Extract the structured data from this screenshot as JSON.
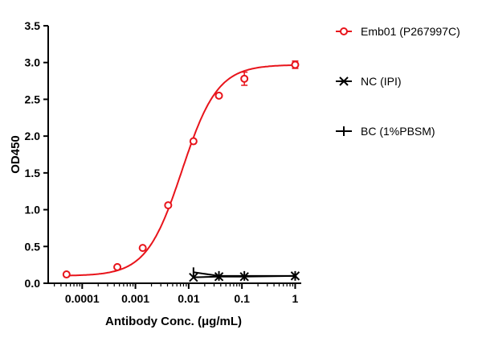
{
  "chart_data": {
    "type": "scatter",
    "title": "",
    "xlabel": "Antibody Conc. (μg/mL)",
    "ylabel": "OD450",
    "x_scale": "log",
    "xlim": [
      2.3e-05,
      1.3
    ],
    "ylim": [
      0,
      3.5
    ],
    "x_ticks": [
      0.0001,
      0.001,
      0.01,
      0.1,
      1
    ],
    "x_tick_labels": [
      "0.0001",
      "0.001",
      "0.01",
      "0.1",
      "1"
    ],
    "y_ticks": [
      0,
      0.5,
      1.0,
      1.5,
      2.0,
      2.5,
      3.0,
      3.5
    ],
    "y_tick_labels": [
      "0.0",
      "0.5",
      "1.0",
      "1.5",
      "2.0",
      "2.5",
      "3.0",
      "3.5"
    ],
    "grid": false,
    "legend_position": "right",
    "series": [
      {
        "name": "Emb01 (P267997C)",
        "color": "#e8141b",
        "marker": "open-circle",
        "fit": "sigmoidal curve",
        "x": [
          5.08e-05,
          0.000457,
          0.00137,
          0.00412,
          0.0123,
          0.037,
          0.111,
          1
        ],
        "y": [
          0.12,
          0.22,
          0.48,
          1.06,
          1.93,
          2.55,
          2.78,
          2.97
        ],
        "error": [
          0,
          0,
          0,
          0,
          0,
          0.02,
          0.09,
          0.05
        ]
      },
      {
        "name": "NC (IPI)",
        "color": "#000000",
        "marker": "x",
        "x": [
          0.0123,
          0.037,
          0.111,
          1
        ],
        "y": [
          0.08,
          0.09,
          0.09,
          0.1
        ]
      },
      {
        "name": "BC (1%PBSM)",
        "color": "#000000",
        "marker": "plus",
        "x": [
          0.0123,
          0.037,
          0.111,
          1
        ],
        "y": [
          0.15,
          0.1,
          0.1,
          0.1
        ]
      }
    ]
  }
}
